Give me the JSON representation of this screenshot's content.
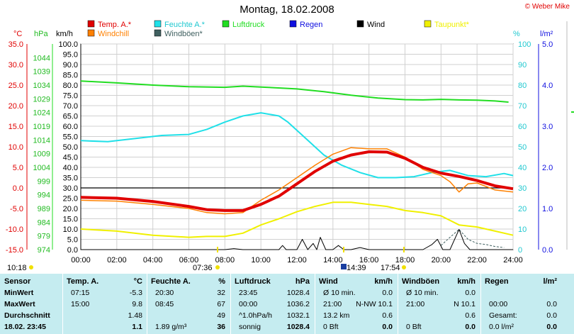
{
  "header": {
    "title": "Montag, 18.02.2008",
    "copyright": "© Weber Mike"
  },
  "legend": [
    {
      "label": "Temp. A.*",
      "color": "#e00000"
    },
    {
      "label": "Feuchte A.*",
      "color": "#20e0e8"
    },
    {
      "label": "Luftdruck",
      "color": "#22dd22"
    },
    {
      "label": "Regen",
      "color": "#1010e0"
    },
    {
      "label": "Wind",
      "color": "#000000"
    },
    {
      "label": "Taupunkt*",
      "color": "#f0f000"
    },
    {
      "label": "Windchill",
      "color": "#ff8000"
    },
    {
      "label": "Windböen*",
      "color": "#406060"
    }
  ],
  "axis_units": {
    "temp": "°C",
    "press": "hPa",
    "wind": "km/h",
    "hum": "%",
    "rain": "l/m²"
  },
  "chart_data": {
    "type": "line",
    "title": "Montag, 18.02.2008",
    "x_ticks": [
      "00:00",
      "02:00",
      "04:00",
      "06:00",
      "08:00",
      "10:00",
      "12:00",
      "14:00",
      "16:00",
      "18:00",
      "20:00",
      "22:00",
      "24:00"
    ],
    "x_range_hours": [
      0,
      24
    ],
    "axes": {
      "temp": {
        "label": "°C",
        "range": [
          -15,
          35
        ],
        "ticks": [
          "35.0",
          "30.0",
          "25.0",
          "20.0",
          "15.0",
          "10.0",
          "5.0",
          "0.0",
          "-5.0",
          "-10.0",
          "-15.0"
        ]
      },
      "press": {
        "label": "hPa",
        "range": [
          974,
          1049
        ],
        "ticks": [
          "1044",
          "1039",
          "1034",
          "1029",
          "1024",
          "1019",
          "1014",
          "1009",
          "1004",
          "999",
          "994",
          "989",
          "984",
          "979",
          "974"
        ]
      },
      "wind": {
        "label": "km/h",
        "range": [
          0,
          100
        ],
        "ticks": [
          "100.0",
          "95.0",
          "90.0",
          "85.0",
          "80.0",
          "75.0",
          "70.0",
          "65.0",
          "60.0",
          "55.0",
          "50.0",
          "45.0",
          "40.0",
          "35.0",
          "30.0",
          "25.0",
          "20.0",
          "15.0",
          "10.0",
          "5.0",
          "0.0"
        ]
      },
      "hum": {
        "label": "%",
        "range": [
          0,
          100
        ],
        "ticks": [
          "100",
          "90",
          "80",
          "70",
          "60",
          "50",
          "40",
          "30",
          "20",
          "10",
          "0"
        ]
      },
      "rain": {
        "label": "l/m²",
        "range": [
          0,
          5
        ],
        "ticks": [
          "5.0",
          "4.0",
          "3.0",
          "2.0",
          "1.0",
          "0.0"
        ]
      }
    },
    "series": [
      {
        "name": "Luftdruck",
        "axis": "press",
        "color": "#22dd22",
        "width": 2,
        "points": [
          [
            0,
            1035.5
          ],
          [
            2,
            1034.8
          ],
          [
            4,
            1034
          ],
          [
            6,
            1033.4
          ],
          [
            8,
            1033.2
          ],
          [
            9,
            1033.6
          ],
          [
            10,
            1033.3
          ],
          [
            12,
            1032.6
          ],
          [
            13.5,
            1031.6
          ],
          [
            15,
            1030.3
          ],
          [
            16.5,
            1029.3
          ],
          [
            18,
            1028.7
          ],
          [
            19,
            1028.6
          ],
          [
            20,
            1028.8
          ],
          [
            21,
            1028.6
          ],
          [
            22,
            1028.5
          ],
          [
            23,
            1028.2
          ],
          [
            23.75,
            1027.8
          ]
        ]
      },
      {
        "name": "Feuchte A.*",
        "axis": "hum",
        "color": "#20e0e8",
        "width": 2,
        "points": [
          [
            0,
            53
          ],
          [
            1.5,
            52.5
          ],
          [
            3,
            54
          ],
          [
            4.5,
            55.5
          ],
          [
            6,
            56
          ],
          [
            7,
            58.5
          ],
          [
            8,
            62
          ],
          [
            9,
            65
          ],
          [
            10,
            66.5
          ],
          [
            11,
            65
          ],
          [
            11.5,
            62
          ],
          [
            12.5,
            54
          ],
          [
            13.5,
            46
          ],
          [
            14.5,
            41
          ],
          [
            15.5,
            37.5
          ],
          [
            16.5,
            35
          ],
          [
            17.5,
            35
          ],
          [
            18.5,
            35.5
          ],
          [
            19.5,
            37.5
          ],
          [
            20.5,
            38.5
          ],
          [
            21.5,
            36
          ],
          [
            22.5,
            35.5
          ],
          [
            23.5,
            37
          ],
          [
            24,
            36
          ]
        ]
      },
      {
        "name": "Taupunkt*",
        "axis": "temp",
        "color": "#f0f000",
        "width": 2,
        "points": [
          [
            0,
            -10
          ],
          [
            2,
            -10.5
          ],
          [
            4,
            -11.5
          ],
          [
            6,
            -12
          ],
          [
            7,
            -11.8
          ],
          [
            8,
            -11.8
          ],
          [
            9,
            -11
          ],
          [
            10,
            -9
          ],
          [
            11,
            -7.5
          ],
          [
            12,
            -5.8
          ],
          [
            13,
            -4.5
          ],
          [
            14,
            -3.5
          ],
          [
            15,
            -3.5
          ],
          [
            16,
            -4
          ],
          [
            17,
            -4.5
          ],
          [
            18,
            -5.5
          ],
          [
            19,
            -6
          ],
          [
            20,
            -6.8
          ],
          [
            21,
            -9
          ],
          [
            22,
            -9.5
          ],
          [
            23,
            -10.5
          ],
          [
            24,
            -11.5
          ]
        ]
      },
      {
        "name": "Windchill",
        "axis": "temp",
        "color": "#ff8000",
        "width": 1.5,
        "points": [
          [
            0,
            -3
          ],
          [
            2,
            -3.2
          ],
          [
            4,
            -4
          ],
          [
            6,
            -5
          ],
          [
            7,
            -6
          ],
          [
            8,
            -6.3
          ],
          [
            9,
            -6
          ],
          [
            10,
            -3
          ],
          [
            11,
            -0.5
          ],
          [
            12,
            2.5
          ],
          [
            13,
            5.5
          ],
          [
            14,
            8.2
          ],
          [
            15,
            9.8
          ],
          [
            16,
            9.5
          ],
          [
            17,
            9.5
          ],
          [
            18,
            7.5
          ],
          [
            19,
            4.5
          ],
          [
            20,
            3
          ],
          [
            20.5,
            1.5
          ],
          [
            21,
            -1
          ],
          [
            21.5,
            1
          ],
          [
            22,
            1.2
          ],
          [
            23,
            -0.5
          ],
          [
            24,
            -1
          ]
        ]
      },
      {
        "name": "Temp. A.*",
        "axis": "temp",
        "color": "#e00000",
        "width": 4,
        "points": [
          [
            0,
            -2.3
          ],
          [
            2,
            -2.5
          ],
          [
            4,
            -3.3
          ],
          [
            6,
            -4.5
          ],
          [
            7,
            -5.3
          ],
          [
            8,
            -5.5
          ],
          [
            9,
            -5.5
          ],
          [
            10,
            -4
          ],
          [
            11,
            -2
          ],
          [
            12,
            1
          ],
          [
            13,
            4
          ],
          [
            14,
            6.5
          ],
          [
            15,
            8
          ],
          [
            16,
            8.8
          ],
          [
            17,
            8.7
          ],
          [
            18,
            7.2
          ],
          [
            19,
            5
          ],
          [
            20,
            3.6
          ],
          [
            21,
            2.8
          ],
          [
            22,
            1.8
          ],
          [
            23,
            0.5
          ],
          [
            24,
            -0.2
          ]
        ]
      },
      {
        "name": "Windböen*",
        "axis": "wind",
        "color": "#406060",
        "width": 1,
        "dashed": true,
        "points": [
          [
            20,
            2
          ],
          [
            20.5,
            6
          ],
          [
            21,
            9.8
          ],
          [
            21.5,
            5
          ],
          [
            22,
            3
          ],
          [
            22.5,
            2.5
          ],
          [
            23,
            1.5
          ],
          [
            23.5,
            1
          ]
        ]
      },
      {
        "name": "Wind",
        "axis": "wind",
        "color": "#000000",
        "width": 1,
        "points": [
          [
            0,
            0
          ],
          [
            8,
            0
          ],
          [
            8.5,
            0.5
          ],
          [
            9,
            0
          ],
          [
            11,
            0
          ],
          [
            11.2,
            2
          ],
          [
            11.4,
            0
          ],
          [
            12,
            0
          ],
          [
            12.3,
            5
          ],
          [
            12.6,
            0
          ],
          [
            12.9,
            3
          ],
          [
            13.1,
            0
          ],
          [
            13.3,
            6
          ],
          [
            13.6,
            0
          ],
          [
            14,
            0
          ],
          [
            14.3,
            2
          ],
          [
            14.6,
            0
          ],
          [
            15,
            0
          ],
          [
            15.5,
            1
          ],
          [
            16,
            0
          ],
          [
            19,
            0
          ],
          [
            19.5,
            2.5
          ],
          [
            19.8,
            5
          ],
          [
            20.1,
            0
          ],
          [
            20.5,
            0
          ],
          [
            21,
            9.8
          ],
          [
            21.3,
            3
          ],
          [
            21.6,
            0
          ],
          [
            24,
            0
          ]
        ]
      }
    ],
    "markers": [
      {
        "label": "10:18",
        "hour": 10.3
      },
      {
        "label": "07:36",
        "hour": 7.6
      },
      {
        "label": "14:39",
        "hour": 14.65
      },
      {
        "label": "17:54",
        "hour": 17.9
      }
    ]
  },
  "table": {
    "sensor": {
      "header": "Sensor",
      "rows": [
        "MinWert",
        "MaxWert",
        "Durchschnitt",
        "18.02. 23:45"
      ]
    },
    "temp": {
      "header": "Temp. A.",
      "unit": "°C",
      "rows": [
        [
          "07:15",
          "-5.3"
        ],
        [
          "15:00",
          "9.8"
        ],
        [
          "",
          "1.48"
        ],
        [
          "",
          "1.1"
        ]
      ]
    },
    "hum": {
      "header": "Feuchte A.",
      "unit": "%",
      "rows": [
        [
          "20:30",
          "32"
        ],
        [
          "08:45",
          "67"
        ],
        [
          "",
          "49"
        ],
        [
          "1.89 g/m³",
          "36"
        ]
      ]
    },
    "press": {
      "header": "Luftdruck",
      "unit": "hPa",
      "rows": [
        [
          "23:45",
          "1028.4"
        ],
        [
          "00:00",
          "1036.2"
        ],
        [
          "^1.0hPa/h",
          "1032.1"
        ],
        [
          "sonnig",
          "1028.4"
        ]
      ]
    },
    "wind": {
      "header": "Wind",
      "unit": "km/h",
      "rows": [
        [
          "Ø 10 min.",
          "0.0"
        ],
        [
          "21:00",
          "N-NW 10.1"
        ],
        [
          "13.2 km",
          "0.6"
        ],
        [
          "0 Bft",
          "0.0"
        ]
      ]
    },
    "gust": {
      "header": "Windböen",
      "unit": "km/h",
      "rows": [
        [
          "Ø 10 min.",
          "0.0"
        ],
        [
          "21:00",
          "N 10.1"
        ],
        [
          "",
          "0.6"
        ],
        [
          "0 Bft",
          "0.0"
        ]
      ]
    },
    "rain": {
      "header": "Regen",
      "unit": "l/m²",
      "rows": [
        [
          "",
          ""
        ],
        [
          "00:00",
          "0.0"
        ],
        [
          "Gesamt:",
          "0.0"
        ],
        [
          "0.0 l/m²",
          "0.0"
        ]
      ]
    }
  }
}
